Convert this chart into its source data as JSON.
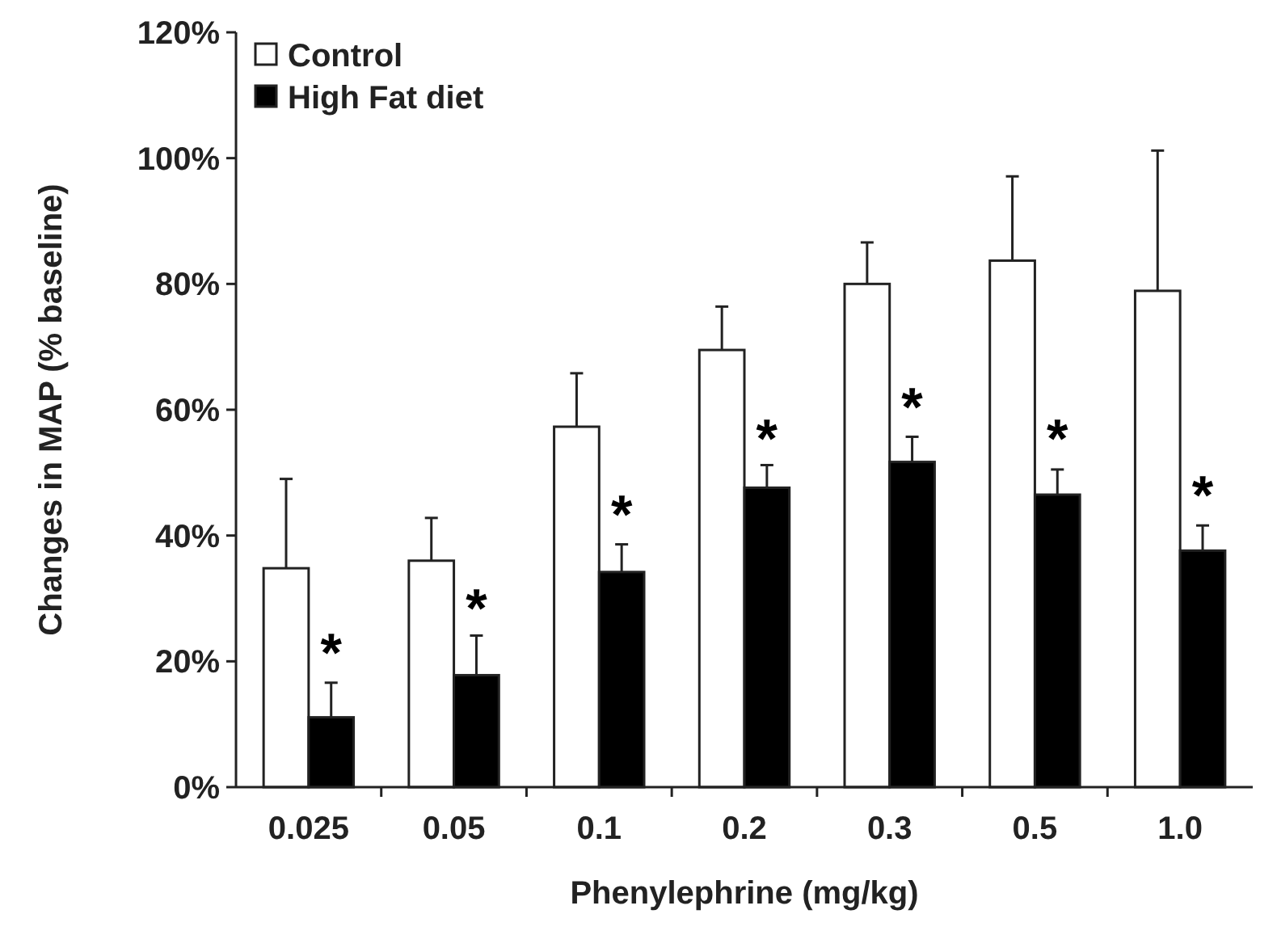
{
  "chart_data": {
    "type": "bar",
    "xlabel": "Phenylephrine (mg/kg)",
    "ylabel": "Changes in MAP (% baseline)",
    "categories": [
      "0.025",
      "0.05",
      "0.1",
      "0.2",
      "0.3",
      "0.5",
      "1.0"
    ],
    "series": [
      {
        "name": "Control",
        "color": "#ffffff",
        "values": [
          34.8,
          36.0,
          57.3,
          69.5,
          80.0,
          83.7,
          78.9
        ],
        "errors": [
          [
            34.8,
            49.0
          ],
          [
            36.0,
            42.8
          ],
          [
            57.3,
            65.8
          ],
          [
            69.5,
            76.4
          ],
          [
            80.0,
            86.6
          ],
          [
            83.7,
            97.1
          ],
          [
            78.9,
            101.2
          ]
        ]
      },
      {
        "name": "High Fat diet",
        "color": "#000000",
        "values": [
          11.1,
          17.8,
          34.2,
          47.6,
          51.7,
          46.5,
          37.6
        ],
        "errors": [
          [
            11.1,
            16.6
          ],
          [
            17.8,
            24.1
          ],
          [
            34.2,
            38.6
          ],
          [
            47.6,
            51.2
          ],
          [
            51.7,
            55.7
          ],
          [
            46.5,
            50.5
          ],
          [
            37.6,
            41.6
          ]
        ]
      }
    ],
    "ylim": [
      0,
      120
    ],
    "yticks": [
      {
        "value": 0,
        "label": "0%"
      },
      {
        "value": 20,
        "label": "20%"
      },
      {
        "value": 40,
        "label": "40%"
      },
      {
        "value": 60,
        "label": "60%"
      },
      {
        "value": 80,
        "label": "80%"
      },
      {
        "value": 100,
        "label": "100%"
      },
      {
        "value": 120,
        "label": "120%"
      }
    ],
    "annotations": [
      {
        "text": "*",
        "x": "0.025",
        "y": 22
      },
      {
        "text": "*",
        "x": "0.05",
        "y": 29
      },
      {
        "text": "*",
        "x": "0.1",
        "y": 44
      },
      {
        "text": "*",
        "x": "0.2",
        "y": 56
      },
      {
        "text": "*",
        "x": "0.3",
        "y": 61
      },
      {
        "text": "*",
        "x": "0.5",
        "y": 56
      },
      {
        "text": "*",
        "x": "1.0",
        "y": 47
      }
    ],
    "legend": "top left",
    "grid": false
  }
}
